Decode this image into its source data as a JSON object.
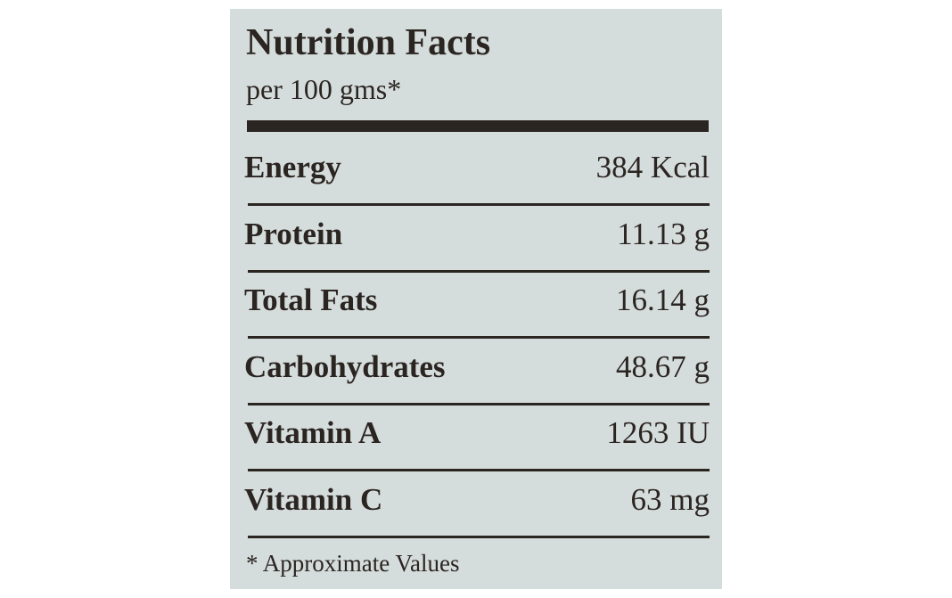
{
  "header": {
    "title": "Nutrition Facts",
    "subtitle": "per 100 gms*"
  },
  "table": {
    "rows": [
      [
        "Energy",
        "384 Kcal"
      ],
      [
        "Protein",
        "11.13 g"
      ],
      [
        "Total Fats",
        "16.14 g"
      ],
      [
        "Carbohydrates",
        "48.67 g"
      ],
      [
        "Vitamin A",
        "1263 IU"
      ],
      [
        "Vitamin C",
        "63 mg"
      ]
    ]
  },
  "footnote": "* Approximate Values"
}
